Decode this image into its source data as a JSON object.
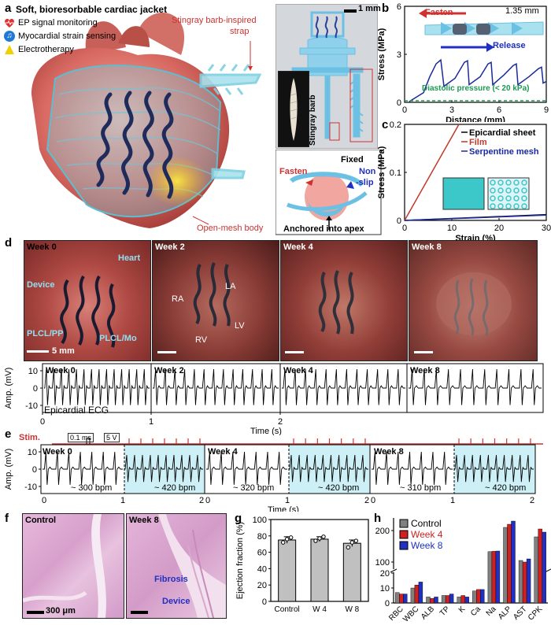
{
  "panels": {
    "a": {
      "label": "a",
      "title": "Soft, bioresorbable cardiac jacket",
      "features": [
        {
          "icon": "heart-pulse-icon",
          "text": "EP signal monitoring",
          "color": "#e03030"
        },
        {
          "icon": "music-note-icon",
          "text": "Myocardial strain sensing",
          "color": "#1f7ad6"
        },
        {
          "icon": "lightning-icon",
          "text": "Electrotherapy",
          "color": "#f0d000"
        }
      ],
      "strap_label_1": "Stingray barb-inspired",
      "strap_label_2": "strap",
      "mesh_label": "Open-mesh body",
      "scale": "1 mm",
      "barb_label": "Stingray barb",
      "fasten": "Fasten",
      "fixed": "Fixed",
      "non_slip_1": "Non",
      "non_slip_2": "-slip",
      "anchor": "Anchored into apex"
    },
    "b": {
      "label": "b",
      "fasten": "Fasten",
      "release": "Release",
      "dimension": "1.35 mm",
      "diastolic": "Diastolic pressure (< 20 kPa)"
    },
    "c": {
      "label": "c"
    },
    "d": {
      "label": "d",
      "weeks": [
        "Week 0",
        "Week 2",
        "Week 4",
        "Week 8"
      ],
      "photo_labels": {
        "heart": "Heart",
        "device": "Device",
        "plcl_pp": "PLCL/PP",
        "plcl_mo": "PLCL/Mo",
        "scale": "5 mm",
        "ra": "RA",
        "la": "LA",
        "lv": "LV",
        "rv": "RV"
      },
      "ecg_label": "Epicardial ECG"
    },
    "e": {
      "label": "e",
      "stim": "Stim.",
      "pulse_width": "0.1 ms",
      "voltage": "5 V",
      "weeks": [
        "Week 0",
        "Week 4",
        "Week 8"
      ],
      "rates": [
        "~ 300 bpm",
        "~ 420 bpm",
        "~ 320 bpm",
        "~ 420 bpm",
        "~ 310 bpm",
        "~ 420 bpm"
      ]
    },
    "f": {
      "label": "f",
      "control": "Control",
      "week8": "Week 8",
      "fibrosis": "Fibrosis",
      "device": "Device",
      "scale": "300 μm"
    },
    "g": {
      "label": "g"
    },
    "h": {
      "label": "h"
    }
  },
  "chart_data": [
    {
      "id": "b",
      "type": "line",
      "xlabel": "Distance (mm)",
      "ylabel": "Stress (MPa)",
      "xlim": [
        0,
        9
      ],
      "ylim": [
        0,
        6
      ],
      "xticks": [
        0,
        3,
        6,
        9
      ],
      "yticks": [
        0,
        3,
        6
      ],
      "series": [
        {
          "color": "#1a2a9a",
          "x": [
            0.3,
            1.2,
            1.6,
            2.0,
            2.3,
            2.5,
            3.2,
            3.8,
            4.0,
            4.1,
            4.8,
            5.3,
            5.5,
            5.6,
            6.3,
            6.9,
            7.1,
            7.2,
            7.9,
            8.5,
            8.7,
            8.8,
            9.0
          ],
          "y": [
            0.05,
            0.6,
            1.6,
            2.4,
            2.65,
            1.0,
            1.5,
            2.5,
            2.6,
            1.1,
            1.6,
            2.4,
            2.5,
            1.1,
            1.7,
            2.3,
            2.4,
            1.1,
            1.6,
            2.1,
            2.2,
            1.2,
            1.3
          ]
        },
        {
          "name": "Diastolic pressure (< 20 kPa)",
          "color": "#1a9a50",
          "dashed": true,
          "x": [
            0,
            9
          ],
          "y": [
            0.1,
            0.1
          ]
        }
      ]
    },
    {
      "id": "c",
      "type": "line",
      "xlabel": "Strain (%)",
      "ylabel": "Stress (MPa)",
      "xlim": [
        0,
        30
      ],
      "ylim": [
        0,
        0.2
      ],
      "xticks": [
        0,
        10,
        20,
        30
      ],
      "yticks": [
        0,
        0.1,
        0.2
      ],
      "series": [
        {
          "name": "Epicardial sheet",
          "color": "#000000",
          "x": [
            0,
            30
          ],
          "y": [
            0,
            0.012
          ]
        },
        {
          "name": "Film",
          "color": "#c0392b",
          "x": [
            0,
            11.5
          ],
          "y": [
            0,
            0.2
          ]
        },
        {
          "name": "Serpentine mesh",
          "color": "#1a2aa0",
          "x": [
            0,
            30
          ],
          "y": [
            0,
            0.011
          ]
        }
      ]
    },
    {
      "id": "d",
      "type": "line",
      "xlabel": "Time (s)",
      "ylabel": "Amp. (mV)",
      "yticks": [
        10,
        0,
        -10
      ],
      "xticks": [
        0,
        1,
        2
      ],
      "panels": [
        "Week 0",
        "Week 2",
        "Week 4",
        "Week 8"
      ]
    },
    {
      "id": "e",
      "type": "line",
      "xlabel": "Time (s)",
      "ylabel": "Amp. (mV)",
      "yticks": [
        10,
        0,
        -10
      ],
      "xticks": [
        0,
        1,
        2
      ],
      "panels": [
        "Week 0",
        "Week 4",
        "Week 8"
      ]
    },
    {
      "id": "g",
      "type": "bar",
      "ylabel": "Ejection fraction (%)",
      "categories": [
        "Control",
        "W 4",
        "W 8"
      ],
      "values": [
        75,
        76,
        71
      ],
      "errors": [
        4,
        3,
        4
      ],
      "points": [
        [
          72,
          76,
          78
        ],
        [
          74,
          77,
          79
        ],
        [
          66,
          72,
          74
        ]
      ],
      "ylim": [
        0,
        100
      ],
      "yticks": [
        0,
        20,
        40,
        60,
        80,
        100
      ]
    },
    {
      "id": "h",
      "type": "bar",
      "categories": [
        "RBC",
        "WBC",
        "ALB",
        "TP",
        "K",
        "Ca",
        "Na",
        "ALP",
        "AST",
        "CPK"
      ],
      "series": [
        {
          "name": "Control",
          "color": "#808080",
          "values": [
            7,
            10,
            4,
            5,
            4,
            8,
            133,
            210,
            105,
            180
          ]
        },
        {
          "name": "Week 4",
          "color": "#d02020",
          "values": [
            6,
            12,
            3,
            5,
            5,
            9,
            134,
            220,
            100,
            205
          ]
        },
        {
          "name": "Week 8",
          "color": "#2030c0",
          "values": [
            6,
            14,
            4,
            6,
            4,
            9,
            135,
            230,
            110,
            195
          ]
        }
      ],
      "yticks": [
        0,
        10,
        20,
        100,
        200
      ],
      "axis_break": [
        20,
        80
      ]
    }
  ]
}
